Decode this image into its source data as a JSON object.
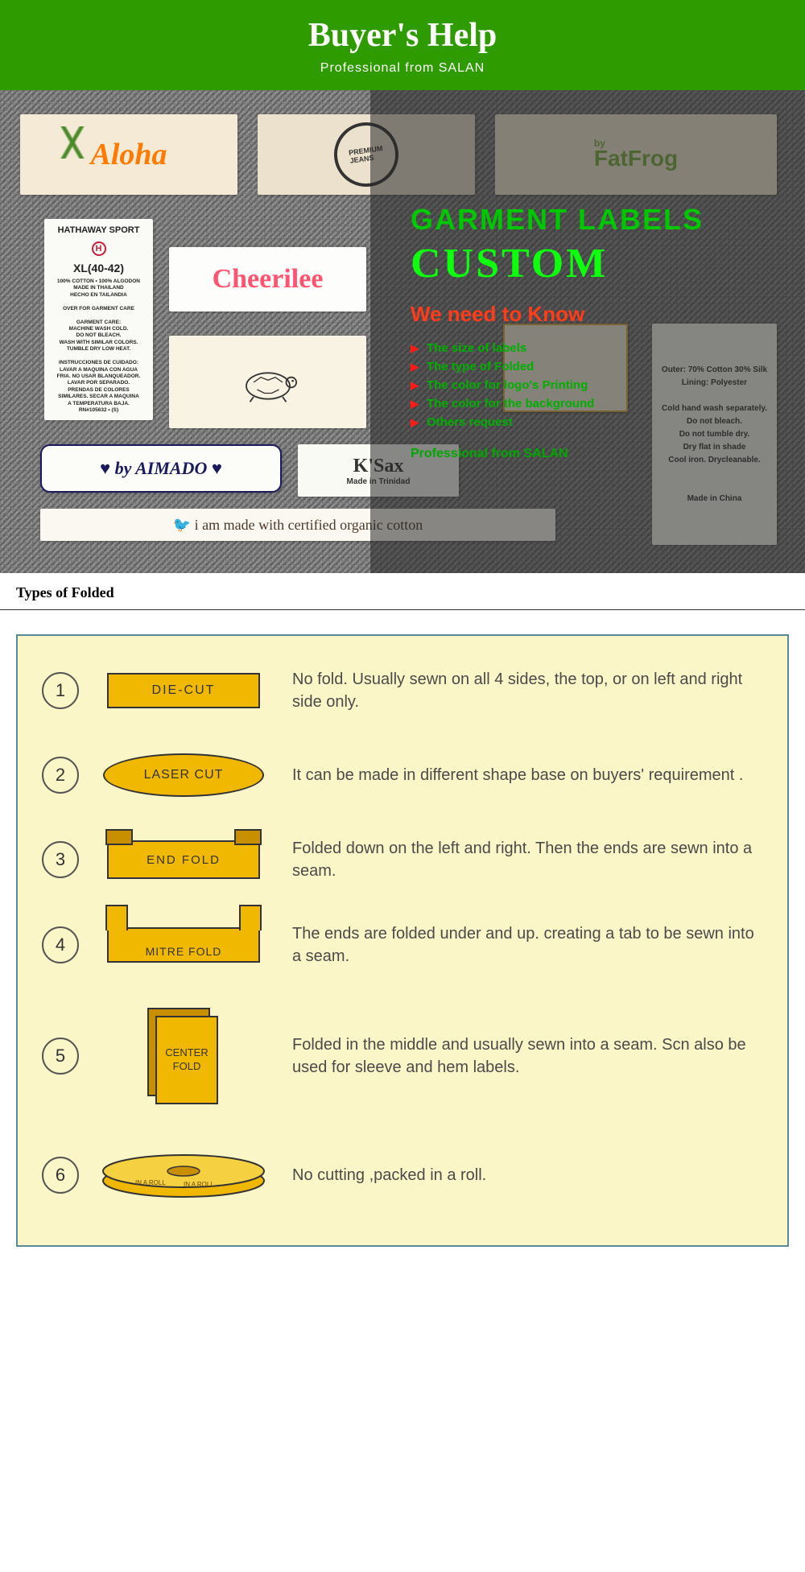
{
  "header": {
    "title": "Buyer's Help",
    "subtitle": "Professional  from  SALAN"
  },
  "collage": {
    "aloha": "Aloha",
    "fatfrog_by": "by",
    "fatfrog": "FatFrog",
    "hathaway_title": "HATHAWAY SPORT",
    "hathaway_h": "H",
    "hathaway_size": "XL(40-42)",
    "hathaway_body": "100% COTTON • 100% ALGODON\nMADE IN THAILAND\nHECHO EN TAILANDIA\n\nOVER FOR GARMENT CARE\n\nGARMENT CARE:\nMACHINE WASH COLD.\nDO NOT BLEACH.\nWASH WITH SIMILAR COLORS.\nTUMBLE DRY LOW HEAT.\n\nINSTRUCCIONES DE CUIDADO:\nLAVAR A MAQUINA CON AGUA\nFRIA. NO USAR BLANQUEADOR.\nLAVAR POR SEPARADO.\nPRENDAS DE COLORES\nSIMILARES. SECAR A MAQUINA\nA TEMPERATURA BAJA.\nRN#105632 • (S)",
    "cheerilee": "Cheerilee",
    "aimado": "♥ by AIMADO ♥",
    "ksax": "K'Sax",
    "ksax_sub": "Made in Trinidad",
    "organic": "🐦  i am made with   certified organic cotton",
    "care_body": "Outer: 70% Cotton 30% Silk\nLining: Polyester\n\nCold hand wash separately.\nDo not bleach.\nDo not tumble dry.\nDry flat in shade\nCool iron. Drycleanable.\n\n\nMade in China"
  },
  "overlay": {
    "line1": "GARMENT LABELS",
    "line2": "CUSTOM",
    "line3": "We need to Know",
    "items": [
      "The size of labels",
      "The type of Folded",
      "The color for logo's Printing",
      "The color for the background",
      "Others request"
    ],
    "footer": "Professional  from  SALAN"
  },
  "section_title": "Types of Folded",
  "folds": [
    {
      "num": "1",
      "name": "DIE-CUT",
      "shape": "rect",
      "desc": "No fold. Usually sewn on all 4 sides, the top, or on left and right side only."
    },
    {
      "num": "2",
      "name": "LASER CUT",
      "shape": "ellipse",
      "desc": "It can be made in different shape base on buyers' requirement ."
    },
    {
      "num": "3",
      "name": "END FOLD",
      "shape": "endfold",
      "desc": "Folded down on the left and right. Then the ends are sewn into a seam."
    },
    {
      "num": "4",
      "name": "MITRE FOLD",
      "shape": "mitre",
      "desc": "The ends are folded under and up. creating a tab to be sewn into a seam."
    },
    {
      "num": "5",
      "name": "CENTER FOLD",
      "shape": "center",
      "desc": "Folded in the middle and usually sewn into a seam. Scn also be used for sleeve and hem labels."
    },
    {
      "num": "6",
      "name": "IN A ROLL",
      "shape": "roll",
      "desc": "No cutting ,packed in a roll."
    }
  ],
  "colors": {
    "banner_bg": "#2e9b00",
    "fold_panel_bg": "#fbf6c8",
    "fold_panel_border": "#5a8a9a",
    "shape_fill": "#f0b800",
    "shape_dark": "#c89000"
  }
}
